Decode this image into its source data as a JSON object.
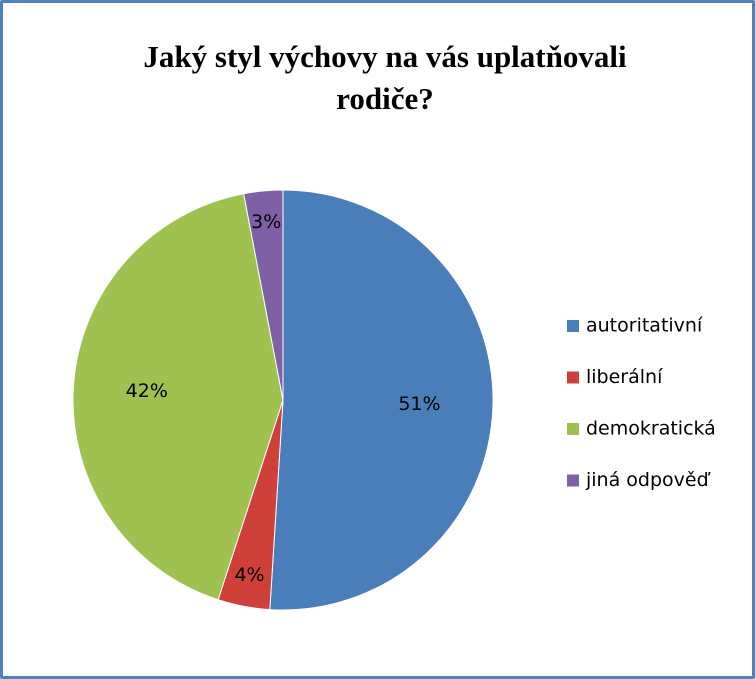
{
  "chart_data": {
    "type": "pie",
    "title": "Jaký styl výchovy na vás uplatňovali rodiče?",
    "categories": [
      "autoritativní",
      "liberální",
      "demokratická",
      "jiná odpověď"
    ],
    "values": [
      51,
      4,
      42,
      3
    ],
    "value_labels": [
      "51%",
      "4%",
      "42%",
      "3%"
    ],
    "colors": [
      "#4a7ebb",
      "#d0403b",
      "#9fc14f",
      "#7f5fa6"
    ],
    "legend": "right"
  }
}
